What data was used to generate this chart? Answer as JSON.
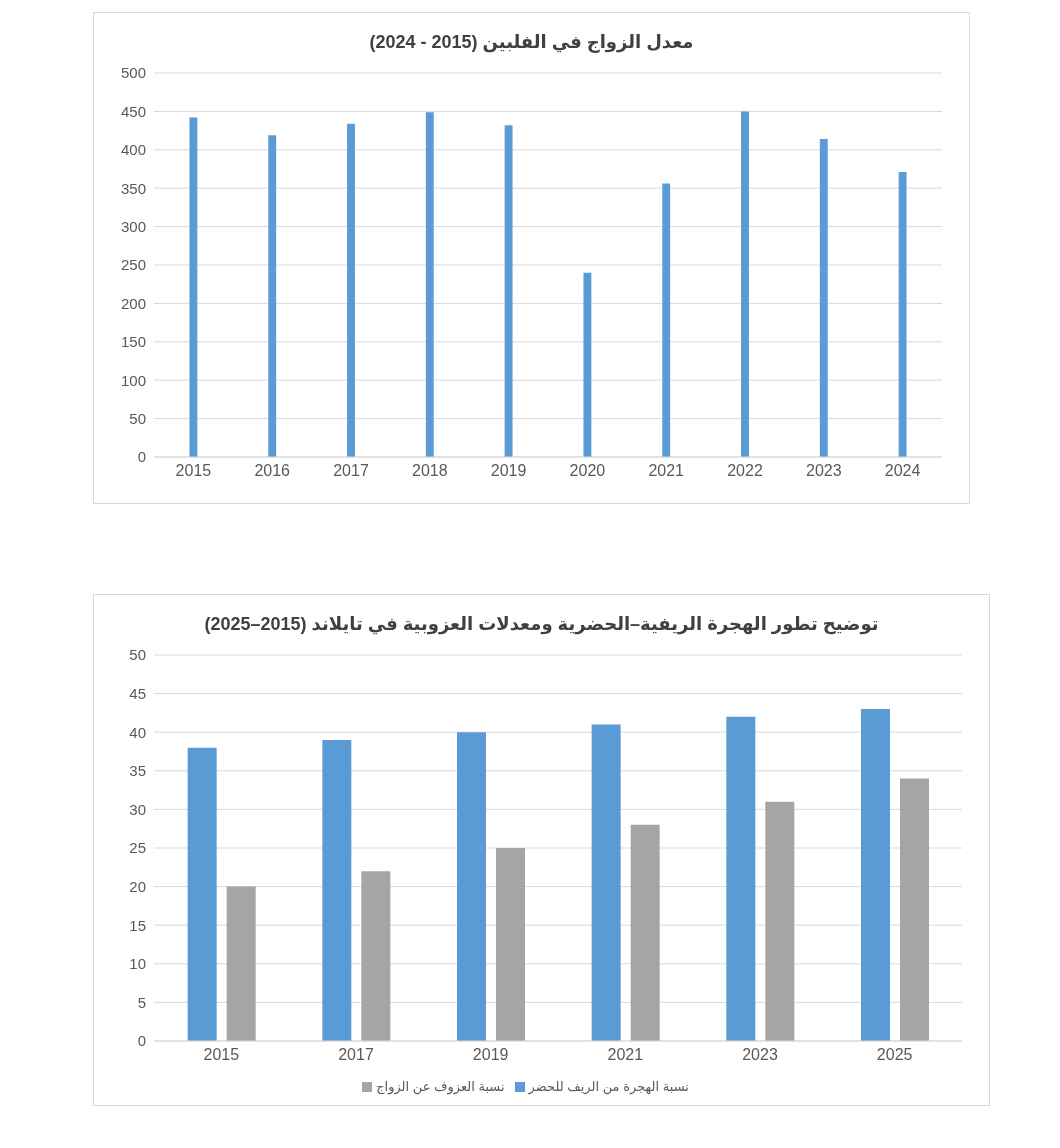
{
  "chart_data": [
    {
      "type": "bar",
      "title": "معدل الزواج في الفلبين (2015 - 2024)",
      "categories": [
        "2015",
        "2016",
        "2017",
        "2018",
        "2019",
        "2020",
        "2021",
        "2022",
        "2023",
        "2024"
      ],
      "values": [
        442,
        419,
        434,
        449,
        432,
        240,
        356,
        450,
        414,
        371
      ],
      "color": "#5b9bd5",
      "ylim": [
        0,
        500
      ],
      "yticks": [
        0,
        50,
        100,
        150,
        200,
        250,
        300,
        350,
        400,
        450,
        500
      ],
      "grid": "y"
    },
    {
      "type": "bar",
      "title": "توضيح تطور الهجرة الريفية–الحضرية ومعدلات العزوبية في تايلاند (2015–2025)",
      "categories": [
        "2015",
        "2017",
        "2019",
        "2021",
        "2023",
        "2025"
      ],
      "series": [
        {
          "name": "نسبة الهجرة من الريف للحضر",
          "color": "#5b9bd5",
          "values": [
            38,
            39,
            40,
            41,
            42,
            43
          ]
        },
        {
          "name": "نسبة العزوف عن الزواج",
          "color": "#a5a5a5",
          "values": [
            20,
            22,
            25,
            28,
            31,
            34
          ]
        }
      ],
      "ylim": [
        0,
        50
      ],
      "yticks": [
        0,
        5,
        10,
        15,
        20,
        25,
        30,
        35,
        40,
        45,
        50
      ],
      "grid": "y",
      "legend": "bottom"
    }
  ]
}
